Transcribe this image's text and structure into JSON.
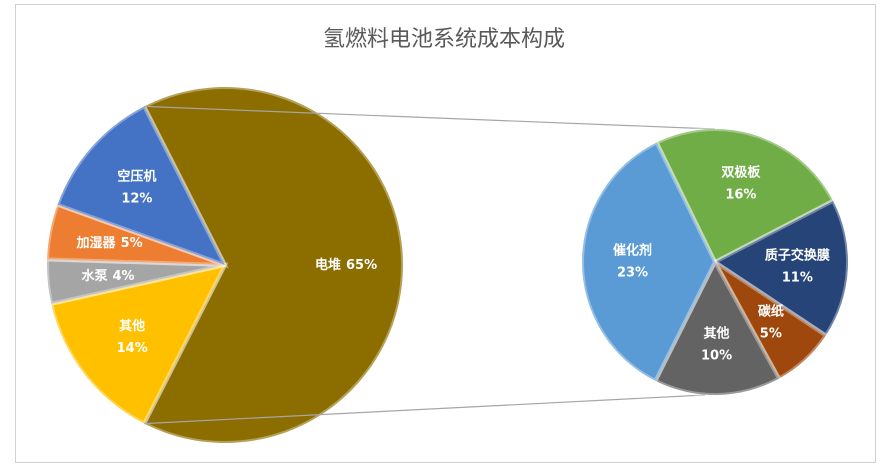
{
  "chart_data": {
    "type": "pie",
    "title": "氢燃料电池系统成本构成",
    "categories": [
      "电堆",
      "其他",
      "水泵",
      "加湿器",
      "空压机"
    ],
    "values": [
      65,
      14,
      4,
      5,
      12
    ],
    "value_labels": [
      "65%",
      "14%",
      "4%",
      "5%",
      "12%"
    ],
    "colors": [
      "#8c6d00",
      "#ffc000",
      "#a5a5a5",
      "#ed7d31",
      "#4472c4"
    ],
    "breakdown": {
      "categories": [
        "双极板",
        "质子交换膜",
        "碳纸",
        "其他",
        "催化剂"
      ],
      "values": [
        16,
        11,
        5,
        10,
        23
      ],
      "value_labels": [
        "16%",
        "11%",
        "5%",
        "10%",
        "23%"
      ],
      "colors": [
        "#70ad47",
        "#264478",
        "#9e480e",
        "#636363",
        "#5b9bd5"
      ]
    }
  }
}
